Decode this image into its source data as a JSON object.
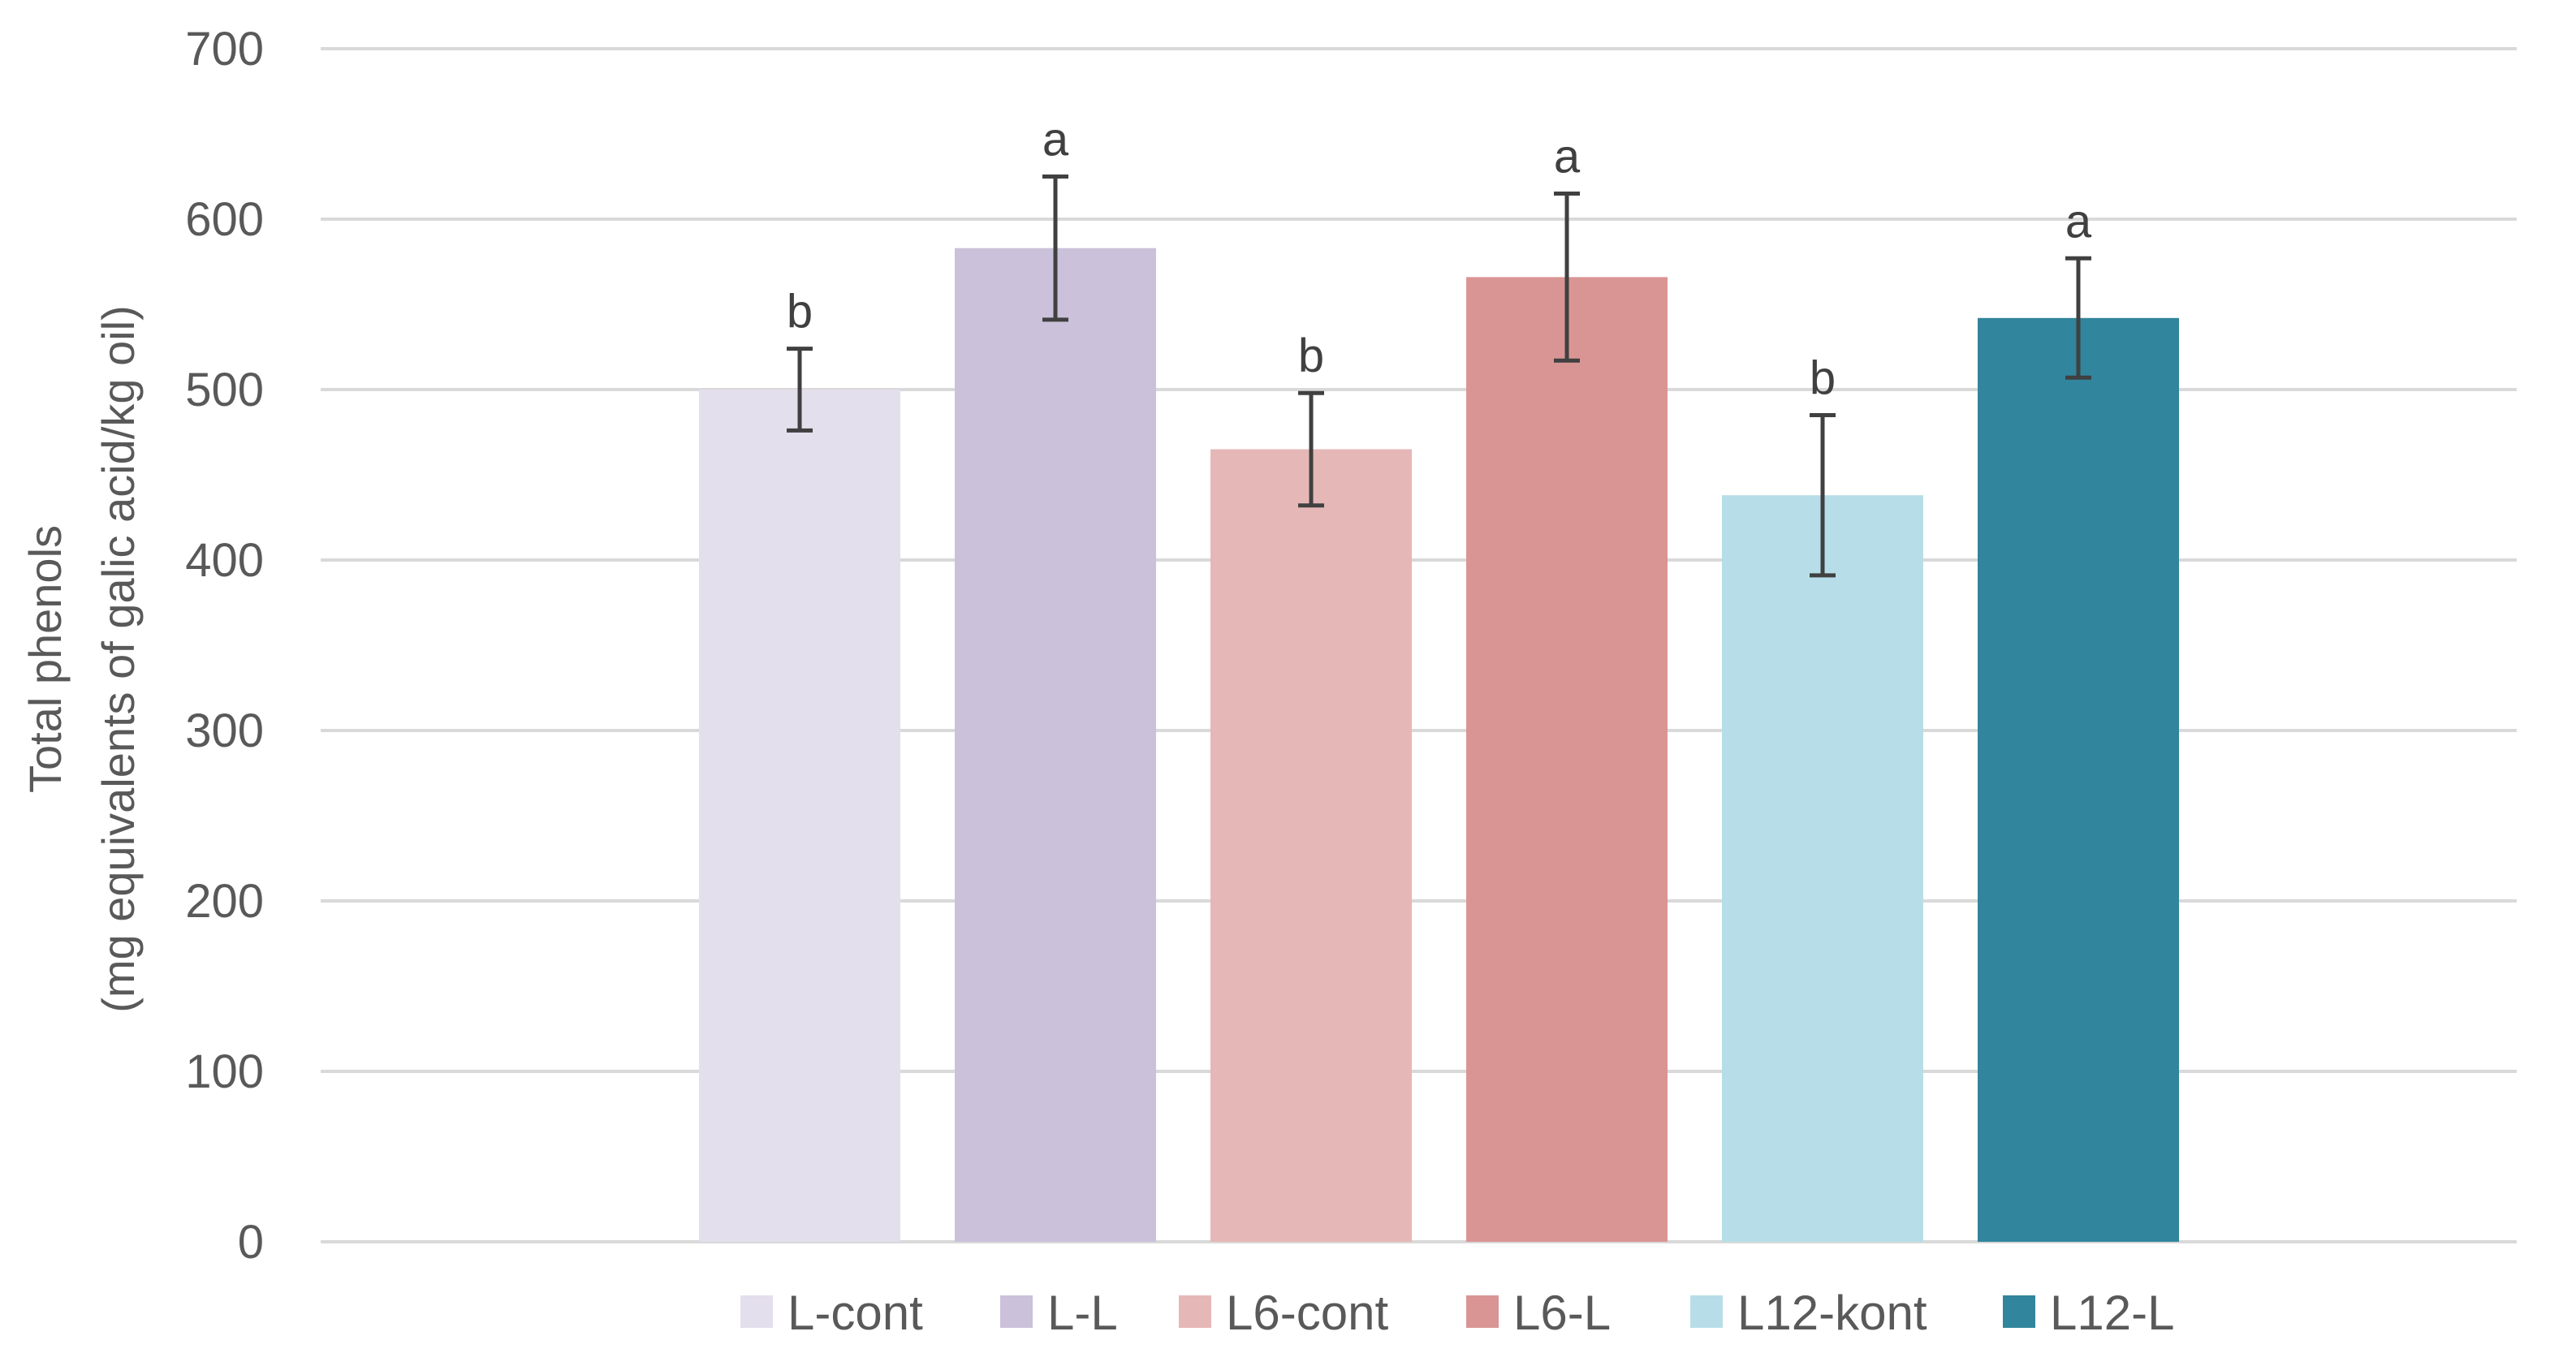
{
  "chart_data": {
    "type": "bar",
    "ylabel_line1": "Total phenols",
    "ylabel_line2": "(mg equivalents of galic acid/kg oil)",
    "ylim": [
      0,
      700
    ],
    "yticks": [
      0,
      100,
      200,
      300,
      400,
      500,
      600,
      700
    ],
    "grid": true,
    "legend_position": "bottom",
    "series": [
      {
        "name": "L-cont",
        "value": 500,
        "error": 24,
        "letter": "b",
        "color": "#E4DFEC"
      },
      {
        "name": "L-L",
        "value": 583,
        "error": 42,
        "letter": "a",
        "color": "#CBC1DA"
      },
      {
        "name": "L6-cont",
        "value": 465,
        "error": 33,
        "letter": "b",
        "color": "#E6B7B7"
      },
      {
        "name": "L6-L",
        "value": 566,
        "error": 49,
        "letter": "a",
        "color": "#D99594"
      },
      {
        "name": "L12-kont",
        "value": 438,
        "error": 47,
        "letter": "b",
        "color": "#B7DEE8"
      },
      {
        "name": "L12-L",
        "value": 542,
        "error": 35,
        "letter": "a",
        "color": "#31859C"
      }
    ]
  }
}
